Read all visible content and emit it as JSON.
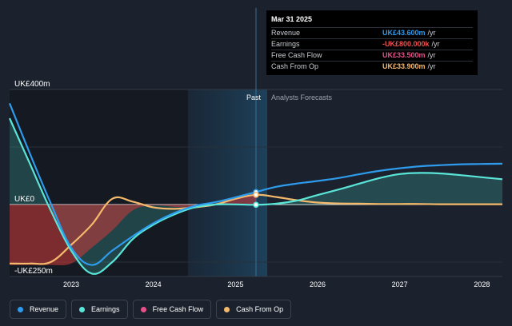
{
  "chart_data": {
    "type": "area",
    "y_axis_labels": [
      "UK£400m",
      "UK£0",
      "-UK£250m"
    ],
    "y_axis_values": [
      400,
      0,
      -250
    ],
    "ylim": [
      -250,
      400
    ],
    "xlim": [
      2022.25,
      2028.25
    ],
    "x_ticks": [
      {
        "label": "2023",
        "value": 2023
      },
      {
        "label": "2024",
        "value": 2024
      },
      {
        "label": "2025",
        "value": 2025
      },
      {
        "label": "2026",
        "value": 2026
      },
      {
        "label": "2027",
        "value": 2027
      },
      {
        "label": "2028",
        "value": 2028
      }
    ],
    "segments": {
      "past": "Past",
      "forecast": "Analysts Forecasts"
    },
    "highlight_range": [
      2024.25,
      2025.25
    ],
    "divider_x": 2025.25,
    "series": [
      {
        "name": "Revenue",
        "color": "#2e9bec",
        "x": [
          2022.25,
          2022.5,
          2022.75,
          2023.0,
          2023.25,
          2023.5,
          2023.75,
          2024.0,
          2024.25,
          2024.5,
          2024.75,
          2025.0,
          2025.25,
          2025.5,
          2025.75,
          2026.0,
          2026.25,
          2026.5,
          2026.75,
          2027.0,
          2027.25,
          2027.5,
          2027.75,
          2028.0,
          2028.25
        ],
        "values": [
          352,
          175,
          5,
          -150,
          -210,
          -160,
          -110,
          -65,
          -30,
          -5,
          8,
          25,
          43.6,
          62,
          73,
          82,
          92,
          105,
          117,
          126,
          133,
          137,
          140,
          141,
          142
        ]
      },
      {
        "name": "Earnings",
        "color": "#59e6d8",
        "x": [
          2022.25,
          2022.5,
          2022.75,
          2023.0,
          2023.25,
          2023.5,
          2023.75,
          2024.0,
          2024.25,
          2024.5,
          2024.75,
          2025.0,
          2025.25,
          2025.5,
          2025.75,
          2026.0,
          2026.25,
          2026.5,
          2026.75,
          2027.0,
          2027.25,
          2027.5,
          2027.75,
          2028.0,
          2028.25
        ],
        "values": [
          300,
          140,
          -20,
          -160,
          -240,
          -200,
          -120,
          -70,
          -35,
          -10,
          0,
          0.5,
          -0.8,
          3,
          14,
          33,
          52,
          72,
          92,
          106,
          110,
          108,
          102,
          95,
          88
        ]
      },
      {
        "name": "Free Cash Flow",
        "color": "#e8508a",
        "x": [
          2022.25,
          2022.5,
          2022.75,
          2023.0,
          2023.25,
          2023.5,
          2023.75,
          2024.0,
          2024.25,
          2024.5,
          2024.75,
          2025.0,
          2025.25
        ],
        "values": [
          -210,
          -210,
          -210,
          -205,
          -150,
          -90,
          -20,
          -3,
          -8,
          -10,
          -3,
          18,
          33.5
        ]
      },
      {
        "name": "Cash From Op",
        "color": "#f5b96b",
        "x": [
          2022.25,
          2022.5,
          2022.75,
          2023.0,
          2023.25,
          2023.5,
          2023.75,
          2024.0,
          2024.25,
          2024.5,
          2024.75,
          2025.0,
          2025.25,
          2025.5,
          2025.75,
          2026.0,
          2026.25,
          2026.5,
          2026.75,
          2027.0,
          2027.25,
          2027.5,
          2027.75,
          2028.0,
          2028.25
        ],
        "values": [
          -205,
          -205,
          -200,
          -140,
          -70,
          20,
          10,
          -10,
          -15,
          -10,
          0,
          20,
          33.9,
          26,
          15,
          7,
          4,
          3,
          2,
          2,
          2,
          1,
          1,
          1,
          1
        ]
      }
    ],
    "legend_placement": "bottom",
    "grid": true
  },
  "tooltip": {
    "date": "Mar 31 2025",
    "rows": [
      {
        "label": "Revenue",
        "value": "UK£43.600m",
        "unit": "/yr",
        "color": "#2e9bec"
      },
      {
        "label": "Earnings",
        "value": "-UK£800.000k",
        "unit": "/yr",
        "color": "#ef4f4f"
      },
      {
        "label": "Free Cash Flow",
        "value": "UK£33.500m",
        "unit": "/yr",
        "color": "#e8508a"
      },
      {
        "label": "Cash From Op",
        "value": "UK£33.900m",
        "unit": "/yr",
        "color": "#f5b96b"
      }
    ]
  },
  "legend": [
    {
      "label": "Revenue",
      "color": "#2e9bec"
    },
    {
      "label": "Earnings",
      "color": "#59e6d8"
    },
    {
      "label": "Free Cash Flow",
      "color": "#e8508a"
    },
    {
      "label": "Cash From Op",
      "color": "#f5b96b"
    }
  ]
}
